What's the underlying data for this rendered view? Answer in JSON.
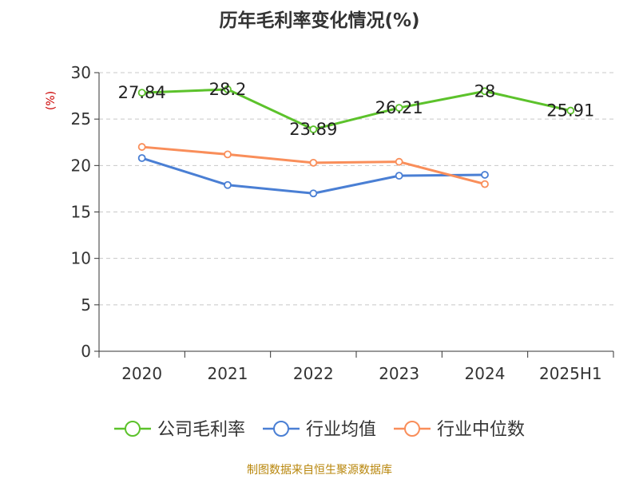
{
  "title": "历年毛利率变化情况(%)",
  "footer": "制图数据来自恒生聚源数据库",
  "chart_data": {
    "type": "line",
    "title": "历年毛利率变化情况(%)",
    "ylabel": "(%)",
    "categories": [
      "2020",
      "2021",
      "2022",
      "2023",
      "2024",
      "2025H1"
    ],
    "ylim": [
      0,
      30
    ],
    "yticks": [
      0,
      5,
      10,
      15,
      20,
      25,
      30
    ],
    "grid": "horizontal-dashed",
    "legend_position": "bottom",
    "series": [
      {
        "name": "公司毛利率",
        "color": "#5cc22b",
        "values": [
          27.84,
          28.2,
          23.89,
          26.21,
          28,
          25.91
        ],
        "labels": [
          "27.84",
          "28.2",
          "23.89",
          "26.21",
          "28",
          "25.91"
        ]
      },
      {
        "name": "行业均值",
        "color": "#4a7fd4",
        "values": [
          20.8,
          17.9,
          17.0,
          18.9,
          19.0,
          null
        ]
      },
      {
        "name": "行业中位数",
        "color": "#f98e5a",
        "values": [
          22.0,
          21.2,
          20.3,
          20.4,
          18.0,
          null
        ]
      }
    ]
  }
}
